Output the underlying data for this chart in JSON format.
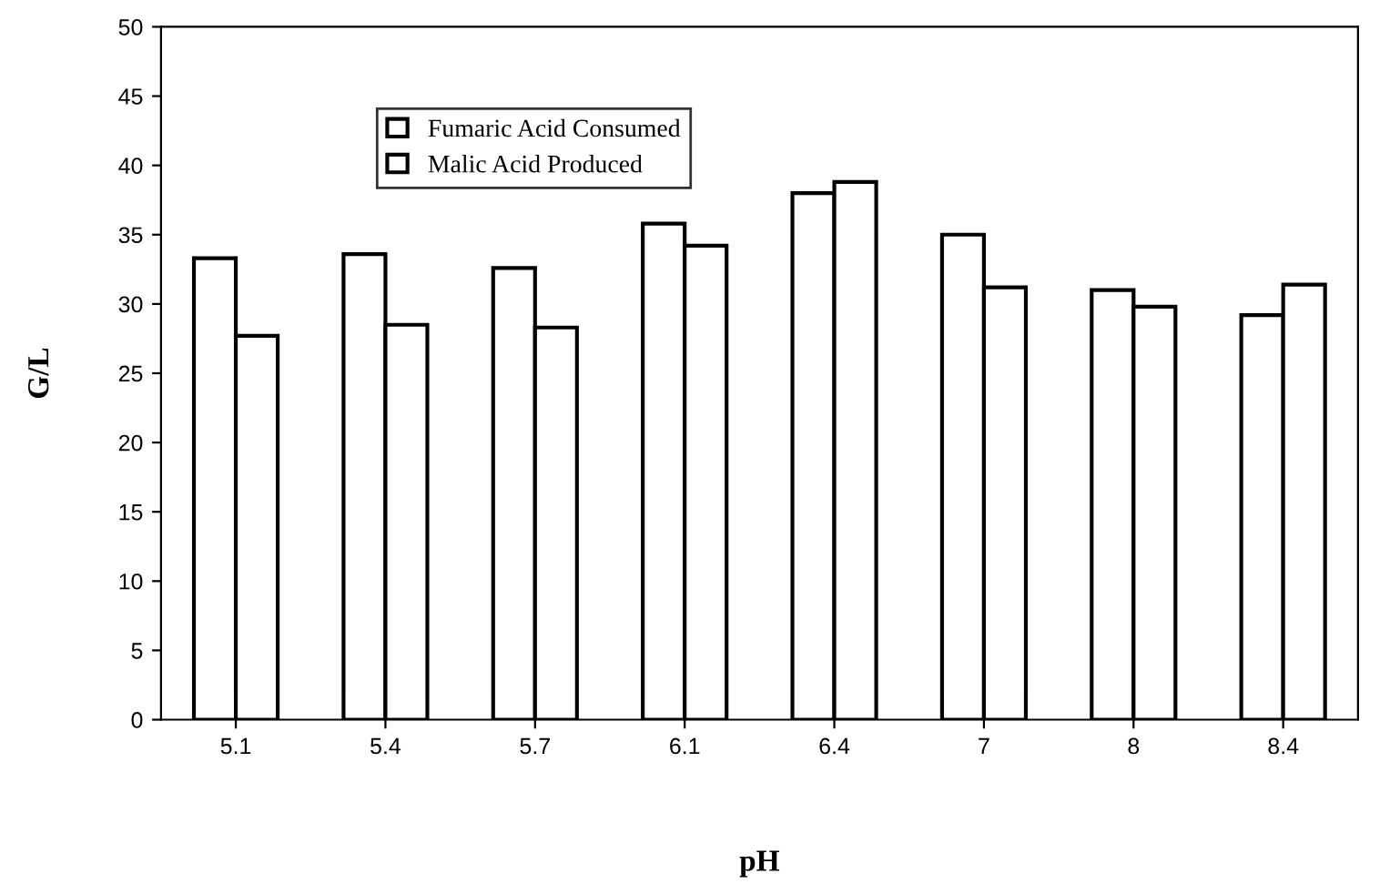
{
  "chart_data": {
    "type": "bar",
    "xlabel": "pH",
    "ylabel": "G/L",
    "categories": [
      "5.1",
      "5.4",
      "5.7",
      "6.1",
      "6.4",
      "7",
      "8",
      "8.4"
    ],
    "series": [
      {
        "name": "Fumaric Acid Consumed",
        "color": "#ffffff",
        "values": [
          33.3,
          33.6,
          32.6,
          35.8,
          38.0,
          35.0,
          31.0,
          29.2
        ]
      },
      {
        "name": "Malic Acid Produced",
        "color": "#ffffff",
        "values": [
          27.7,
          28.5,
          28.3,
          34.2,
          38.8,
          31.2,
          29.8,
          31.4
        ]
      }
    ],
    "ylim": [
      0,
      50
    ],
    "yticks": [
      0,
      5,
      10,
      15,
      20,
      25,
      30,
      35,
      40,
      45,
      50
    ],
    "grid": false,
    "legend": "top left"
  }
}
